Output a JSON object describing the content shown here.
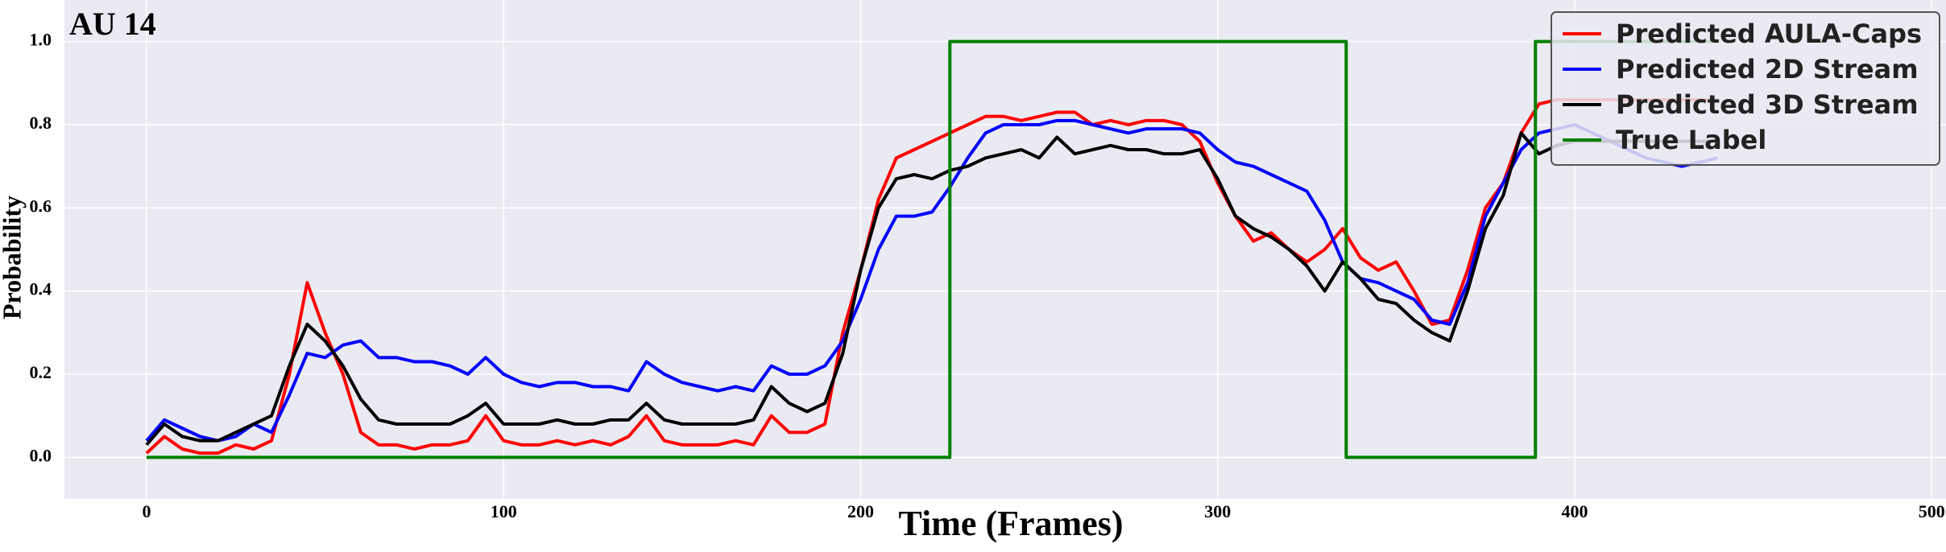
{
  "chart_data": {
    "type": "line",
    "title": "AU 14",
    "x_label": "Time (Frames)",
    "y_label": "Probability",
    "x": [
      0,
      5,
      10,
      15,
      20,
      25,
      30,
      35,
      40,
      45,
      50,
      55,
      60,
      65,
      70,
      75,
      80,
      85,
      90,
      95,
      100,
      105,
      110,
      115,
      120,
      125,
      130,
      135,
      140,
      145,
      150,
      155,
      160,
      165,
      170,
      175,
      180,
      185,
      190,
      195,
      200,
      205,
      210,
      215,
      220,
      225,
      230,
      235,
      240,
      245,
      250,
      255,
      260,
      265,
      270,
      275,
      280,
      285,
      290,
      295,
      300,
      305,
      310,
      315,
      320,
      325,
      330,
      335,
      340,
      345,
      350,
      355,
      360,
      365,
      370,
      375,
      380,
      385,
      390,
      395,
      400,
      405,
      410,
      415,
      420,
      425,
      430,
      435,
      440
    ],
    "series": [
      {
        "name": "Predicted AULA-Caps",
        "color": "#ff0000",
        "values": [
          0.01,
          0.05,
          0.02,
          0.01,
          0.01,
          0.03,
          0.02,
          0.04,
          0.2,
          0.42,
          0.3,
          0.2,
          0.06,
          0.03,
          0.03,
          0.02,
          0.03,
          0.03,
          0.04,
          0.1,
          0.04,
          0.03,
          0.03,
          0.04,
          0.03,
          0.04,
          0.03,
          0.05,
          0.1,
          0.04,
          0.03,
          0.03,
          0.03,
          0.04,
          0.03,
          0.1,
          0.06,
          0.06,
          0.08,
          0.3,
          0.45,
          0.62,
          0.72,
          0.74,
          0.76,
          0.78,
          0.8,
          0.82,
          0.82,
          0.81,
          0.82,
          0.83,
          0.83,
          0.8,
          0.81,
          0.8,
          0.81,
          0.81,
          0.8,
          0.76,
          0.66,
          0.58,
          0.52,
          0.54,
          0.5,
          0.47,
          0.5,
          0.55,
          0.48,
          0.45,
          0.47,
          0.4,
          0.32,
          0.33,
          0.45,
          0.6,
          0.66,
          0.78,
          0.85,
          0.86,
          0.86,
          0.86,
          0.86,
          0.86,
          0.86,
          0.86,
          0.86,
          0.86,
          0.86
        ]
      },
      {
        "name": "Predicted 2D Stream",
        "color": "#0000ff",
        "values": [
          0.04,
          0.09,
          0.07,
          0.05,
          0.04,
          0.05,
          0.08,
          0.06,
          0.15,
          0.25,
          0.24,
          0.27,
          0.28,
          0.24,
          0.24,
          0.23,
          0.23,
          0.22,
          0.2,
          0.24,
          0.2,
          0.18,
          0.17,
          0.18,
          0.18,
          0.17,
          0.17,
          0.16,
          0.23,
          0.2,
          0.18,
          0.17,
          0.16,
          0.17,
          0.16,
          0.22,
          0.2,
          0.2,
          0.22,
          0.28,
          0.38,
          0.5,
          0.58,
          0.58,
          0.59,
          0.65,
          0.72,
          0.78,
          0.8,
          0.8,
          0.8,
          0.81,
          0.81,
          0.8,
          0.79,
          0.78,
          0.79,
          0.79,
          0.79,
          0.78,
          0.74,
          0.71,
          0.7,
          0.68,
          0.66,
          0.64,
          0.57,
          0.47,
          0.43,
          0.42,
          0.4,
          0.38,
          0.33,
          0.32,
          0.42,
          0.58,
          0.66,
          0.74,
          0.78,
          0.79,
          0.8,
          0.78,
          0.76,
          0.74,
          0.72,
          0.71,
          0.7,
          0.71,
          0.72
        ]
      },
      {
        "name": "Predicted 3D Stream",
        "color": "#000000",
        "values": [
          0.03,
          0.08,
          0.05,
          0.04,
          0.04,
          0.06,
          0.08,
          0.1,
          0.22,
          0.32,
          0.28,
          0.22,
          0.14,
          0.09,
          0.08,
          0.08,
          0.08,
          0.08,
          0.1,
          0.13,
          0.08,
          0.08,
          0.08,
          0.09,
          0.08,
          0.08,
          0.09,
          0.09,
          0.13,
          0.09,
          0.08,
          0.08,
          0.08,
          0.08,
          0.09,
          0.17,
          0.13,
          0.11,
          0.13,
          0.25,
          0.45,
          0.6,
          0.67,
          0.68,
          0.67,
          0.69,
          0.7,
          0.72,
          0.73,
          0.74,
          0.72,
          0.77,
          0.73,
          0.74,
          0.75,
          0.74,
          0.74,
          0.73,
          0.73,
          0.74,
          0.67,
          0.58,
          0.55,
          0.53,
          0.5,
          0.46,
          0.4,
          0.47,
          0.43,
          0.38,
          0.37,
          0.33,
          0.3,
          0.28,
          0.4,
          0.55,
          0.63,
          0.78,
          0.73,
          0.75,
          0.76,
          0.76,
          0.76,
          0.76,
          0.76,
          0.76,
          0.76,
          0.76,
          0.76
        ]
      },
      {
        "name": "True Label",
        "color": "#008000",
        "x": [
          0,
          225,
          225,
          336,
          336,
          389,
          389,
          440
        ],
        "values": [
          0,
          0,
          1,
          1,
          0,
          0,
          1,
          1
        ]
      }
    ],
    "xlim": [
      -23,
      504
    ],
    "ylim": [
      -0.1,
      1.1
    ],
    "xticks": [
      0,
      100,
      200,
      300,
      400,
      500
    ],
    "yticks": [
      {
        "value": 0,
        "label": "0.0"
      },
      0.2,
      0.4,
      0.6,
      0.8,
      {
        "value": 1,
        "label": "1.0"
      }
    ],
    "grid": true,
    "legend": "upper right"
  }
}
